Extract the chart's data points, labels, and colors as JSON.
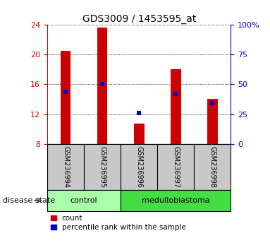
{
  "title": "GDS3009 / 1453595_at",
  "samples": [
    "GSM236994",
    "GSM236995",
    "GSM236996",
    "GSM236997",
    "GSM236998"
  ],
  "bar_values": [
    20.5,
    23.7,
    10.7,
    18.0,
    14.0
  ],
  "bar_base": 8,
  "percentile_values": [
    15.0,
    16.0,
    12.1,
    14.7,
    13.5
  ],
  "ylim_left": [
    8,
    24
  ],
  "ylim_right": [
    0,
    100
  ],
  "yticks_left": [
    8,
    12,
    16,
    20,
    24
  ],
  "yticks_right": [
    0,
    25,
    50,
    75,
    100
  ],
  "ytick_labels_right": [
    "0",
    "25",
    "50",
    "75",
    "100%"
  ],
  "bar_color": "#cc0000",
  "percentile_color": "#0000cc",
  "groups": [
    {
      "label": "control",
      "start": 0,
      "end": 1,
      "color": "#aaffaa"
    },
    {
      "label": "medulloblastoma",
      "start": 2,
      "end": 4,
      "color": "#44dd44"
    }
  ],
  "group_label": "disease state",
  "background_color": "#ffffff",
  "tick_area_bg": "#c8c8c8",
  "legend_count_label": "count",
  "legend_pct_label": "percentile rank within the sample"
}
